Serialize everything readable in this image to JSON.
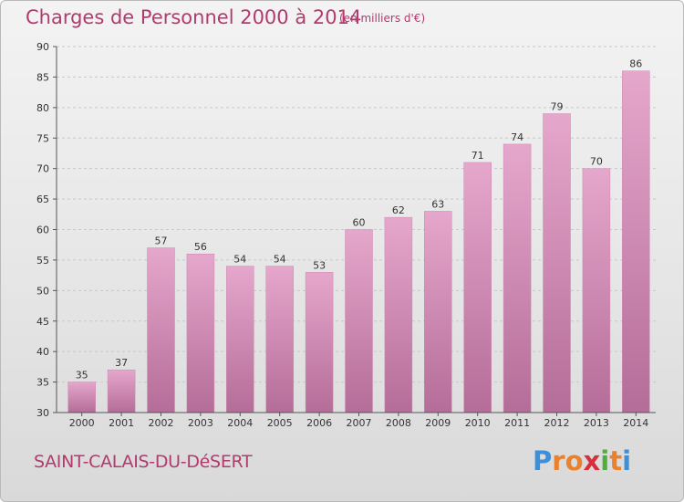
{
  "header": {
    "title": "Charges de Personnel 2000 à 2014",
    "subtitle": "(en milliers d'€)"
  },
  "footer": {
    "commune": "SAINT-CALAIS-DU-DéSERT",
    "logo_letters": [
      "P",
      "r",
      "o",
      "x",
      "i",
      "t",
      "i"
    ]
  },
  "colors": {
    "bar_top": "#e6a7cc",
    "bar_bottom": "#b46d98",
    "text_accent": "#b23a6e"
  },
  "chart_data": {
    "type": "bar",
    "title": "Charges de Personnel 2000 à 2014",
    "subtitle": "(en milliers d'€)",
    "xlabel": "",
    "ylabel": "",
    "categories": [
      "2000",
      "2001",
      "2002",
      "2003",
      "2004",
      "2005",
      "2006",
      "2007",
      "2008",
      "2009",
      "2010",
      "2011",
      "2012",
      "2013",
      "2014"
    ],
    "values": [
      35,
      37,
      57,
      56,
      54,
      54,
      53,
      60,
      62,
      63,
      71,
      74,
      79,
      70,
      86
    ],
    "ylim": [
      30,
      90
    ],
    "yticks": [
      30,
      35,
      40,
      45,
      50,
      55,
      60,
      65,
      70,
      75,
      80,
      85,
      90
    ],
    "grid": true,
    "data_labels": true
  }
}
